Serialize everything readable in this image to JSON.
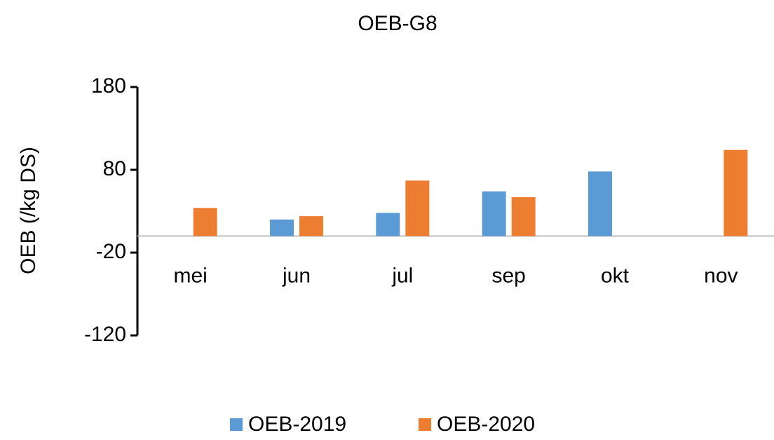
{
  "chart_data": {
    "type": "bar",
    "title": "OEB-G8",
    "y_label": "OEB (/kg DS)",
    "categories": [
      "mei",
      "jun",
      "jul",
      "sep",
      "okt",
      "nov"
    ],
    "series": [
      {
        "name": "OEB-2019",
        "color": "#5b9bd5",
        "values": [
          null,
          20,
          28,
          54,
          78,
          null
        ]
      },
      {
        "name": "OEB-2020",
        "color": "#ed7d31",
        "values": [
          34,
          24,
          67,
          47,
          null,
          104
        ]
      }
    ],
    "ylim": [
      -120,
      180
    ],
    "yticks": [
      -120,
      -20,
      80,
      180
    ],
    "legend": "bottom"
  }
}
